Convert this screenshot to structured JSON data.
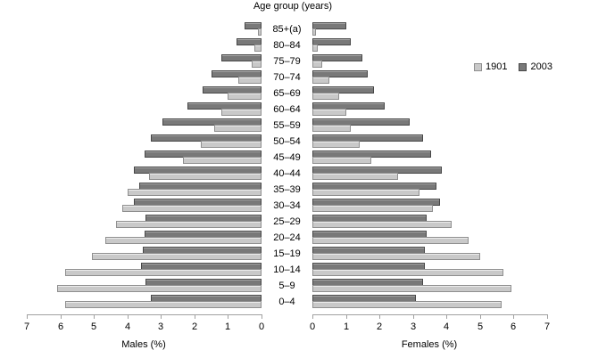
{
  "title": "Age group (years)",
  "legend": [
    {
      "label": "1901",
      "fill": "#c9c9c9",
      "border": "#8f8f8f"
    },
    {
      "label": "2003",
      "fill": "#797979",
      "border": "#474747"
    }
  ],
  "axes": {
    "male_title": "Males (%)",
    "female_title": "Females (%)",
    "male_ticks": [
      7,
      6,
      5,
      4,
      3,
      2,
      1,
      0
    ],
    "female_ticks": [
      0,
      1,
      2,
      3,
      4,
      5,
      6,
      7
    ],
    "max_percent": 7
  },
  "chart_data": {
    "type": "bar",
    "subtype": "population-pyramid",
    "title": "Age group (years)",
    "unit": "percent",
    "xlabel_male": "Males (%)",
    "xlabel_female": "Females (%)",
    "xlim": [
      0,
      7
    ],
    "grid": false,
    "legend_position": "top-right",
    "categories": [
      "85+(a)",
      "80–84",
      "75–79",
      "70–74",
      "65–69",
      "60–64",
      "55–59",
      "50–54",
      "45–49",
      "40–44",
      "35–39",
      "30–34",
      "25–29",
      "20–24",
      "15–19",
      "10–14",
      "5–9",
      "0–4"
    ],
    "series": [
      {
        "name": "1901",
        "side": "male",
        "values": [
          0.1,
          0.2,
          0.3,
          0.7,
          1.0,
          1.2,
          1.4,
          1.8,
          2.35,
          3.35,
          4.0,
          4.15,
          4.35,
          4.65,
          5.05,
          5.85,
          6.1,
          5.85
        ]
      },
      {
        "name": "2003",
        "side": "male",
        "values": [
          0.5,
          0.75,
          1.2,
          1.5,
          1.75,
          2.2,
          2.95,
          3.3,
          3.5,
          3.8,
          3.65,
          3.8,
          3.45,
          3.5,
          3.55,
          3.6,
          3.45,
          3.3
        ]
      },
      {
        "name": "1901",
        "side": "female",
        "values": [
          0.1,
          0.15,
          0.3,
          0.5,
          0.8,
          1.0,
          1.15,
          1.4,
          1.75,
          2.55,
          3.2,
          3.6,
          4.15,
          4.65,
          5.0,
          5.7,
          5.95,
          5.65
        ]
      },
      {
        "name": "2003",
        "side": "female",
        "values": [
          1.0,
          1.15,
          1.5,
          1.65,
          1.85,
          2.15,
          2.9,
          3.3,
          3.55,
          3.85,
          3.7,
          3.8,
          3.4,
          3.4,
          3.35,
          3.35,
          3.3,
          3.1
        ]
      }
    ]
  }
}
